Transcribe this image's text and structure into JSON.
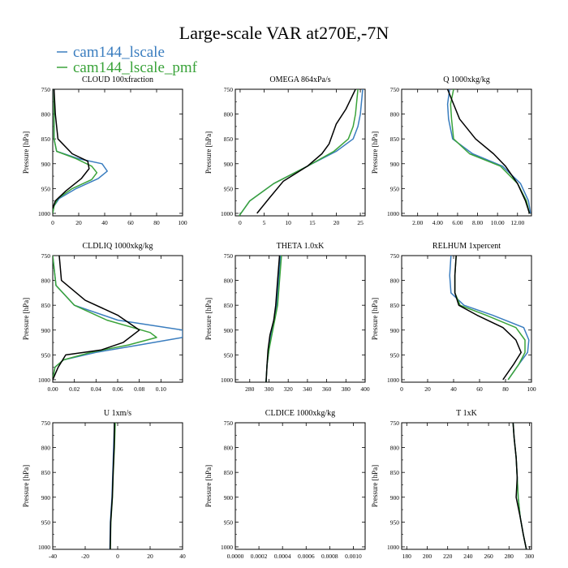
{
  "figure": {
    "title": "Large-scale VAR at270E,-7N",
    "legend": [
      {
        "name": "cam144_lscale",
        "color": "#3a7dbf"
      },
      {
        "name": "cam144_lscale_pmf",
        "color": "#3aa33a"
      }
    ]
  },
  "colors": {
    "lscale": "#3a7dbf",
    "pmf": "#3aa33a",
    "obs": "#000000"
  },
  "chart_data": [
    {
      "type": "line",
      "title": "CLOUD 100xfraction",
      "ylabel": "Pressure [hPa]",
      "xlim": [
        0,
        100
      ],
      "ylim": [
        1005,
        750
      ],
      "y_reversed": true,
      "xticks": [
        "0",
        "20",
        "40",
        "60",
        "80",
        "100"
      ],
      "xtick_values": [
        0,
        20,
        40,
        60,
        80,
        100
      ],
      "yticks": [
        750,
        800,
        850,
        900,
        950,
        1000
      ],
      "series": [
        {
          "color_key": "lscale",
          "x": [
            1,
            1,
            1,
            3,
            20,
            38,
            42,
            35,
            18,
            5,
            1,
            0
          ],
          "y": [
            750,
            800,
            850,
            875,
            890,
            900,
            915,
            930,
            950,
            970,
            985,
            1000
          ]
        },
        {
          "color_key": "pmf",
          "x": [
            1,
            1,
            1,
            3,
            18,
            30,
            34,
            30,
            15,
            4,
            1,
            0
          ],
          "y": [
            750,
            800,
            850,
            875,
            890,
            905,
            918,
            932,
            950,
            970,
            985,
            1000
          ]
        },
        {
          "color_key": "obs",
          "x": [
            1,
            2,
            4,
            15,
            27,
            28,
            22,
            10,
            2,
            0
          ],
          "y": [
            750,
            800,
            850,
            880,
            895,
            910,
            930,
            955,
            975,
            990
          ]
        }
      ]
    },
    {
      "type": "line",
      "title": "OMEGA 864xPa/s",
      "ylabel": "Pressure [hPa]",
      "xlim": [
        -1,
        26
      ],
      "ylim": [
        1005,
        750
      ],
      "y_reversed": true,
      "xticks": [
        "0",
        "5",
        "10",
        "15",
        "20",
        "25"
      ],
      "xtick_values": [
        0,
        5,
        10,
        15,
        20,
        25
      ],
      "yticks": [
        750,
        800,
        850,
        900,
        950,
        1000
      ],
      "series": [
        {
          "color_key": "lscale",
          "x": [
            25.5,
            25,
            24.5,
            23.5,
            20,
            14,
            7,
            2,
            -0.2
          ],
          "y": [
            750,
            800,
            825,
            850,
            875,
            905,
            940,
            975,
            1005
          ]
        },
        {
          "color_key": "pmf",
          "x": [
            24.5,
            24,
            23.5,
            22.5,
            19.5,
            14,
            7,
            2,
            -0.2
          ],
          "y": [
            750,
            800,
            825,
            850,
            875,
            905,
            940,
            975,
            1005
          ]
        },
        {
          "color_key": "obs",
          "x": [
            24,
            22,
            20,
            18.5,
            17,
            14,
            9,
            6,
            3.5
          ],
          "y": [
            750,
            790,
            820,
            860,
            880,
            905,
            935,
            970,
            1000
          ]
        }
      ]
    },
    {
      "type": "line",
      "title": "Q 1000xkg/kg",
      "ylabel": "Pressure [hPa]",
      "xlim": [
        0.4,
        13.4
      ],
      "ylim": [
        1005,
        750
      ],
      "y_reversed": true,
      "xticks": [
        "2.00",
        "4.00",
        "6.00",
        "8.00",
        "10.00",
        "12.00"
      ],
      "xtick_values": [
        2,
        4,
        6,
        8,
        10,
        12
      ],
      "yticks": [
        750,
        800,
        850,
        900,
        950,
        1000
      ],
      "series": [
        {
          "color_key": "lscale",
          "x": [
            5.2,
            5.0,
            5.1,
            5.5,
            7.5,
            10.5,
            12.3,
            13.1,
            13.3
          ],
          "y": [
            750,
            780,
            810,
            850,
            880,
            905,
            940,
            975,
            1000
          ]
        },
        {
          "color_key": "pmf",
          "x": [
            5.6,
            5.3,
            5.4,
            5.6,
            7.2,
            10.3,
            12.0,
            12.9,
            13.2
          ],
          "y": [
            750,
            780,
            810,
            850,
            880,
            905,
            940,
            975,
            1000
          ]
        },
        {
          "color_key": "obs",
          "x": [
            5.0,
            5.6,
            6.2,
            7.8,
            9.6,
            10.8,
            12.0,
            12.8,
            13.2
          ],
          "y": [
            750,
            780,
            810,
            850,
            880,
            905,
            940,
            975,
            1000
          ]
        }
      ]
    },
    {
      "type": "line",
      "title": "CLDLIQ 1000xkg/kg",
      "ylabel": "Pressure [hPa]",
      "xlim": [
        0,
        0.12
      ],
      "ylim": [
        1005,
        750
      ],
      "y_reversed": true,
      "xticks": [
        "0.00",
        "0.02",
        "0.04",
        "0.06",
        "0.08",
        "0.10"
      ],
      "xtick_values": [
        0,
        0.02,
        0.04,
        0.06,
        0.08,
        0.1
      ],
      "yticks": [
        750,
        800,
        850,
        900,
        950,
        1000
      ],
      "series": [
        {
          "color_key": "lscale",
          "x": [
            0,
            0.003,
            0.02,
            0.06,
            0.12,
            0.12,
            0.08,
            0.04,
            0.01,
            0.002,
            0
          ],
          "y": [
            750,
            810,
            850,
            880,
            900,
            915,
            930,
            945,
            960,
            975,
            1000
          ]
        },
        {
          "color_key": "pmf",
          "x": [
            0,
            0.003,
            0.02,
            0.05,
            0.09,
            0.096,
            0.07,
            0.035,
            0.01,
            0.002,
            0
          ],
          "y": [
            750,
            810,
            850,
            880,
            905,
            915,
            930,
            945,
            960,
            975,
            1000
          ]
        },
        {
          "color_key": "obs",
          "x": [
            0.006,
            0.008,
            0.03,
            0.06,
            0.08,
            0.065,
            0.045,
            0.012,
            0.005,
            0
          ],
          "y": [
            750,
            800,
            840,
            870,
            900,
            925,
            940,
            950,
            975,
            1000
          ]
        }
      ]
    },
    {
      "type": "line",
      "title": "THETA 1.0xK",
      "ylabel": "Pressure [hPa]",
      "xlim": [
        265,
        400
      ],
      "ylim": [
        1005,
        750
      ],
      "y_reversed": true,
      "xticks": [
        "280",
        "300",
        "320",
        "340",
        "360",
        "380",
        "400"
      ],
      "xtick_values": [
        280,
        300,
        320,
        340,
        360,
        380,
        400
      ],
      "yticks": [
        750,
        800,
        850,
        900,
        950,
        1000
      ],
      "series": [
        {
          "color_key": "lscale",
          "x": [
            312,
            310,
            308,
            305,
            302,
            300,
            298,
            297
          ],
          "y": [
            750,
            800,
            850,
            880,
            910,
            940,
            970,
            1005
          ]
        },
        {
          "color_key": "pmf",
          "x": [
            313,
            311,
            309,
            306,
            303,
            300,
            298,
            297
          ],
          "y": [
            750,
            800,
            850,
            880,
            910,
            940,
            970,
            1005
          ]
        },
        {
          "color_key": "obs",
          "x": [
            311,
            309,
            307,
            305,
            301,
            299,
            298,
            297
          ],
          "y": [
            750,
            800,
            850,
            880,
            910,
            940,
            970,
            1005
          ]
        }
      ]
    },
    {
      "type": "line",
      "title": "RELHUM 1xpercent",
      "ylabel": "Pressure [hPa]",
      "xlim": [
        0,
        100
      ],
      "ylim": [
        1005,
        750
      ],
      "y_reversed": true,
      "xticks": [
        "0",
        "20",
        "40",
        "60",
        "80",
        "100"
      ],
      "xtick_values": [
        0,
        20,
        40,
        60,
        80,
        100
      ],
      "yticks": [
        750,
        800,
        850,
        900,
        950,
        1000
      ],
      "series": [
        {
          "color_key": "lscale",
          "x": [
            38,
            37,
            38,
            48,
            70,
            94,
            98,
            97,
            90,
            82
          ],
          "y": [
            750,
            790,
            825,
            850,
            870,
            895,
            920,
            945,
            970,
            1000
          ]
        },
        {
          "color_key": "pmf",
          "x": [
            42,
            41,
            41,
            45,
            65,
            88,
            95,
            95,
            90,
            82
          ],
          "y": [
            750,
            790,
            825,
            850,
            870,
            895,
            920,
            945,
            970,
            1000
          ]
        },
        {
          "color_key": "obs",
          "x": [
            42,
            41,
            41,
            44,
            58,
            78,
            88,
            92,
            86,
            78
          ],
          "y": [
            750,
            790,
            825,
            850,
            870,
            895,
            920,
            945,
            970,
            1000
          ]
        }
      ]
    },
    {
      "type": "line",
      "title": "U 1xm/s",
      "ylabel": "Pressure [hPa]",
      "xlim": [
        -40,
        40
      ],
      "ylim": [
        1005,
        750
      ],
      "y_reversed": true,
      "xticks": [
        "-40",
        "-20",
        "0",
        "20",
        "40"
      ],
      "xtick_values": [
        -40,
        -20,
        0,
        20,
        40
      ],
      "yticks": [
        750,
        800,
        850,
        900,
        950,
        1000
      ],
      "series": [
        {
          "color_key": "lscale",
          "x": [
            -2,
            -2.5,
            -3,
            -3.5,
            -4.5,
            -4.8
          ],
          "y": [
            750,
            800,
            850,
            900,
            950,
            1005
          ]
        },
        {
          "color_key": "pmf",
          "x": [
            -1.5,
            -2,
            -2.7,
            -3.2,
            -4.2,
            -4.5
          ],
          "y": [
            750,
            800,
            850,
            900,
            950,
            1005
          ]
        },
        {
          "color_key": "obs",
          "x": [
            -2,
            -2.2,
            -2.8,
            -3.3,
            -4.3,
            -4.6
          ],
          "y": [
            750,
            800,
            850,
            900,
            950,
            1005
          ]
        }
      ]
    },
    {
      "type": "line",
      "title": "CLDICE 1000xkg/kg",
      "ylabel": "Pressure [hPa]",
      "xlim": [
        0,
        0.0011
      ],
      "ylim": [
        1005,
        750
      ],
      "y_reversed": true,
      "xticks": [
        "0.0000",
        "0.0002",
        "0.0004",
        "0.0006",
        "0.0008",
        "0.0010"
      ],
      "xtick_values": [
        0,
        0.0002,
        0.0004,
        0.0006,
        0.0008,
        0.001
      ],
      "yticks": [
        750,
        800,
        850,
        900,
        950,
        1000
      ],
      "series": []
    },
    {
      "type": "line",
      "title": "T 1xK",
      "ylabel": "Pressure [hPa]",
      "xlim": [
        175,
        302
      ],
      "ylim": [
        1005,
        750
      ],
      "y_reversed": true,
      "xticks": [
        "180",
        "200",
        "220",
        "240",
        "260",
        "280",
        "300"
      ],
      "xtick_values": [
        180,
        200,
        220,
        240,
        260,
        280,
        300
      ],
      "yticks": [
        750,
        800,
        850,
        900,
        950,
        1000
      ],
      "series": [
        {
          "color_key": "lscale",
          "x": [
            284,
            285,
            287,
            288,
            289,
            291,
            294,
            297
          ],
          "y": [
            750,
            780,
            820,
            860,
            900,
            940,
            975,
            1005
          ]
        },
        {
          "color_key": "pmf",
          "x": [
            284,
            285,
            287,
            288,
            289,
            291,
            294,
            297
          ],
          "y": [
            750,
            780,
            820,
            860,
            900,
            940,
            975,
            1005
          ]
        },
        {
          "color_key": "obs",
          "x": [
            284,
            285,
            287,
            288,
            287,
            291,
            294,
            297
          ],
          "y": [
            750,
            780,
            820,
            860,
            900,
            940,
            975,
            1005
          ]
        }
      ]
    }
  ]
}
